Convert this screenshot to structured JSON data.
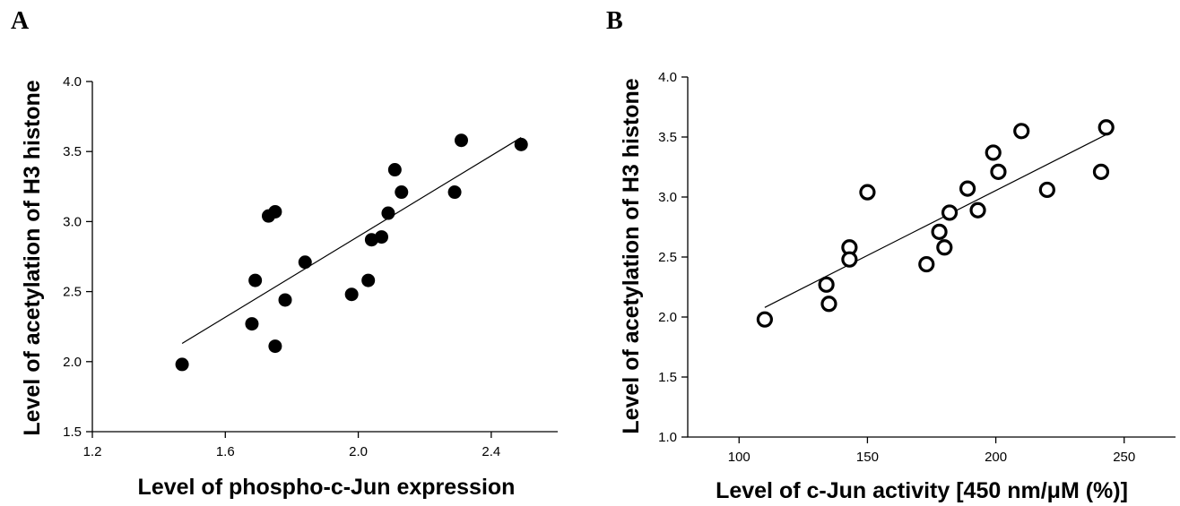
{
  "chart_data": [
    {
      "type": "scatter",
      "panel_label": "A",
      "xlabel": "Level of phospho-c-Jun expression",
      "ylabel": "Level of acetylation of H3 histone",
      "xlim": [
        1.2,
        2.6
      ],
      "ylim": [
        1.5,
        4.0
      ],
      "xticks": [
        "1.2",
        "1.6",
        "2.0",
        "2.4"
      ],
      "yticks": [
        "1.5",
        "2.0",
        "2.5",
        "3.0",
        "3.5",
        "4.0"
      ],
      "marker": "filled-circle",
      "marker_color": "#000000",
      "grid": false,
      "points": [
        {
          "x": 1.47,
          "y": 1.98
        },
        {
          "x": 1.68,
          "y": 2.27
        },
        {
          "x": 1.69,
          "y": 2.58
        },
        {
          "x": 1.73,
          "y": 3.04
        },
        {
          "x": 1.75,
          "y": 3.07
        },
        {
          "x": 1.75,
          "y": 2.11
        },
        {
          "x": 1.78,
          "y": 2.44
        },
        {
          "x": 1.84,
          "y": 2.71
        },
        {
          "x": 1.98,
          "y": 2.48
        },
        {
          "x": 2.03,
          "y": 2.58
        },
        {
          "x": 2.04,
          "y": 2.87
        },
        {
          "x": 2.07,
          "y": 2.89
        },
        {
          "x": 2.09,
          "y": 3.06
        },
        {
          "x": 2.11,
          "y": 3.37
        },
        {
          "x": 2.13,
          "y": 3.21
        },
        {
          "x": 2.29,
          "y": 3.21
        },
        {
          "x": 2.31,
          "y": 3.58
        },
        {
          "x": 2.49,
          "y": 3.55
        }
      ],
      "fit_line": {
        "x": [
          1.47,
          2.49
        ],
        "y": [
          2.13,
          3.6
        ]
      }
    },
    {
      "type": "scatter",
      "panel_label": "B",
      "xlabel": "Level of c-Jun activity [450 nm/μM (%)]",
      "ylabel": "Level of acetylation of H3 histone",
      "xlim": [
        80,
        270
      ],
      "ylim": [
        1.0,
        4.0
      ],
      "xticks": [
        "100",
        "150",
        "200",
        "250"
      ],
      "yticks": [
        "1.0",
        "1.5",
        "2.0",
        "2.5",
        "3.0",
        "3.5",
        "4.0"
      ],
      "marker": "open-circle",
      "marker_color": "#000000",
      "grid": false,
      "points": [
        {
          "x": 110,
          "y": 1.98
        },
        {
          "x": 134,
          "y": 2.27
        },
        {
          "x": 135,
          "y": 2.11
        },
        {
          "x": 143,
          "y": 2.58
        },
        {
          "x": 143,
          "y": 2.48
        },
        {
          "x": 150,
          "y": 3.04
        },
        {
          "x": 173,
          "y": 2.44
        },
        {
          "x": 178,
          "y": 2.71
        },
        {
          "x": 180,
          "y": 2.58
        },
        {
          "x": 182,
          "y": 2.87
        },
        {
          "x": 189,
          "y": 3.07
        },
        {
          "x": 193,
          "y": 2.89
        },
        {
          "x": 199,
          "y": 3.37
        },
        {
          "x": 201,
          "y": 3.21
        },
        {
          "x": 210,
          "y": 3.55
        },
        {
          "x": 220,
          "y": 3.06
        },
        {
          "x": 241,
          "y": 3.21
        },
        {
          "x": 243,
          "y": 3.58
        }
      ],
      "fit_line": {
        "x": [
          110,
          243
        ],
        "y": [
          2.08,
          3.52
        ]
      }
    }
  ]
}
